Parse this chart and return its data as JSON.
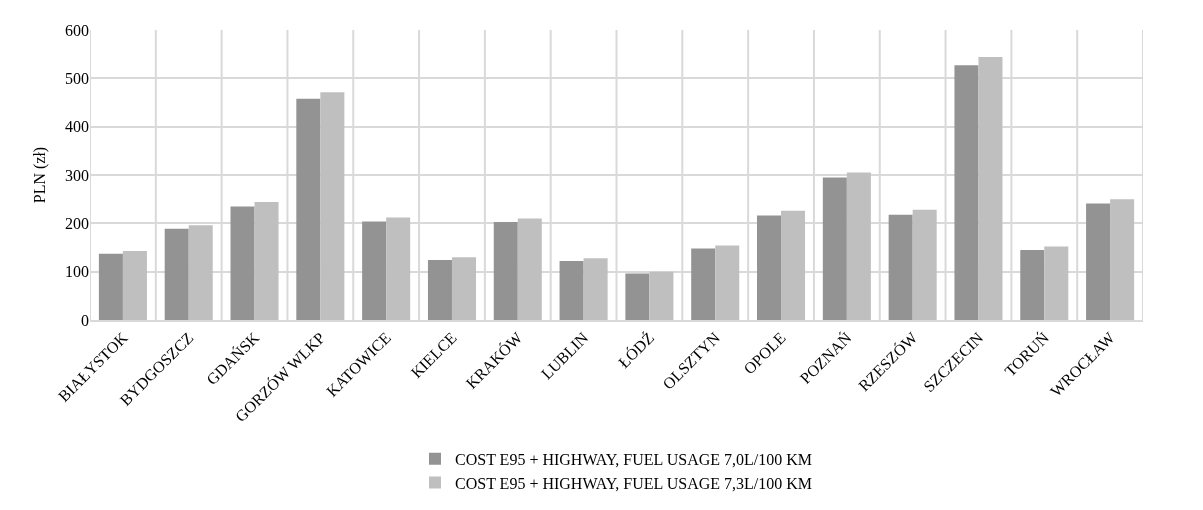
{
  "chart_data": {
    "type": "bar",
    "ylabel": "PLN (zł)",
    "categories": [
      "BIAŁYSTOK",
      "BYDGOSZCZ",
      "GDAŃSK",
      "GORZÓW WLKP",
      "KATOWICE",
      "KIELCE",
      "KRAKÓW",
      "LUBLIN",
      "ŁÓDŹ",
      "OLSZTYN",
      "OPOLE",
      "POZNAŃ",
      "RZESZÓW",
      "SZCZECIN",
      "TORUŃ",
      "WROCŁAW"
    ],
    "series": [
      {
        "name": "COST E95 + HIGHWAY, FUEL USAGE 7,0L/100 KM",
        "color": "#939393",
        "values": [
          137,
          189,
          235,
          458,
          204,
          124,
          203,
          122,
          96,
          148,
          216,
          295,
          218,
          527,
          145,
          241
        ]
      },
      {
        "name": "COST E95 + HIGHWAY, FUEL USAGE 7,3L/100 KM",
        "color": "#bfbfbf",
        "values": [
          143,
          196,
          244,
          471,
          212,
          130,
          210,
          128,
          100,
          154,
          226,
          305,
          228,
          544,
          152,
          250
        ]
      }
    ],
    "ylim": [
      0,
      600
    ],
    "yticks": [
      0,
      100,
      200,
      300,
      400,
      500,
      600
    ],
    "grid": true,
    "legend": "bottom"
  }
}
